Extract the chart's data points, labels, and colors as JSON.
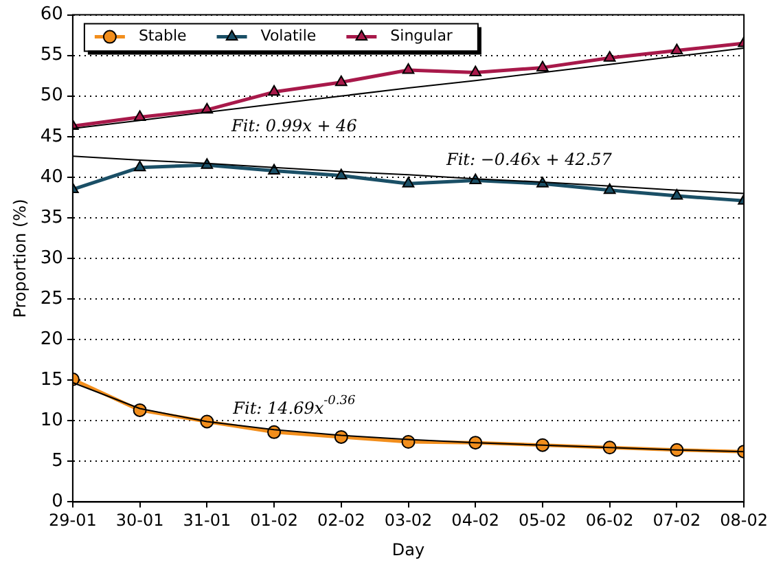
{
  "chart_data": {
    "type": "line",
    "xlabel": "Day",
    "ylabel": "Proportion (%)",
    "categories": [
      "29-01",
      "30-01",
      "31-01",
      "01-02",
      "02-02",
      "03-02",
      "04-02",
      "05-02",
      "06-02",
      "07-02",
      "08-02"
    ],
    "ylim": [
      0,
      60
    ],
    "yticks": [
      0,
      5,
      10,
      15,
      20,
      25,
      30,
      35,
      40,
      45,
      50,
      55,
      60
    ],
    "grid": "y",
    "legend": "top left",
    "line_style": "solid",
    "series": [
      {
        "name": "Stable",
        "color": "#f28e1c",
        "marker": "circle",
        "values": [
          15.1,
          11.3,
          9.9,
          8.6,
          8.0,
          7.4,
          7.3,
          7.0,
          6.7,
          6.4,
          6.2
        ]
      },
      {
        "name": "Volatile",
        "color": "#1a4f66",
        "marker": "triangle",
        "values": [
          38.5,
          41.2,
          41.5,
          40.8,
          40.2,
          39.2,
          39.6,
          39.2,
          38.4,
          37.7,
          37.1
        ]
      },
      {
        "name": "Singular",
        "color": "#a8194a",
        "marker": "triangle",
        "values": [
          46.3,
          47.4,
          48.3,
          50.5,
          51.7,
          53.2,
          52.9,
          53.5,
          54.7,
          55.6,
          56.5
        ]
      },
      {
        "type": "line",
        "color": "#000000",
        "marker": "none",
        "x": [
          "29-01",
          "30-01",
          "31-01",
          "01-02",
          "02-02",
          "03-02",
          "04-02",
          "05-02",
          "06-02",
          "07-02",
          "08-02"
        ],
        "values": [
          46.0,
          47.0,
          48.0,
          49.0,
          50.0,
          51.0,
          51.9,
          52.9,
          53.9,
          54.9,
          55.9
        ]
      },
      {
        "type": "line",
        "color": "#000000",
        "marker": "none",
        "x": [
          "29-01",
          "30-01",
          "31-01",
          "01-02",
          "02-02",
          "03-02",
          "04-02",
          "05-02",
          "06-02",
          "07-02",
          "08-02"
        ],
        "values": [
          42.6,
          42.1,
          41.7,
          41.2,
          40.7,
          40.3,
          39.8,
          39.4,
          38.9,
          38.4,
          38.0
        ]
      },
      {
        "type": "line",
        "color": "#000000",
        "marker": "none",
        "x": [
          "29-01",
          "30-01",
          "31-01",
          "01-02",
          "02-02",
          "03-02",
          "04-02",
          "05-02",
          "06-02",
          "07-02",
          "08-02"
        ],
        "values": [
          14.7,
          11.5,
          9.9,
          8.9,
          8.2,
          7.7,
          7.3,
          7.0,
          6.7,
          6.4,
          6.2
        ]
      }
    ],
    "annotations": [
      "Fit: 0.99x + 46",
      "Fit: −0.46x + 42.57",
      "Fit: 14.69x$^{-0.36}$"
    ]
  }
}
